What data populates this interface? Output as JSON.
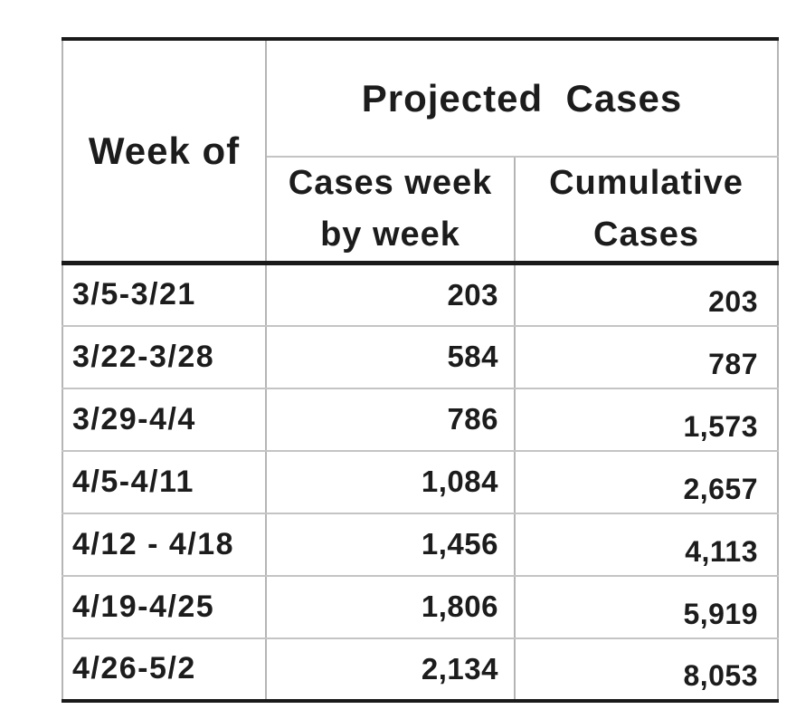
{
  "page": {
    "background": "#ffffff"
  },
  "table": {
    "header": {
      "week_of": "Week of",
      "projected_cases": "Projected  Cases",
      "sub_weekly": "Cases week\nby week",
      "sub_cumulative": "Cumulative\nCases"
    },
    "rows": [
      {
        "week": "3/5-3/21",
        "weekly": "203",
        "cumulative": "203"
      },
      {
        "week": "3/22-3/28",
        "weekly": "584",
        "cumulative": "787"
      },
      {
        "week": "3/29-4/4",
        "weekly": "786",
        "cumulative": "1,573"
      },
      {
        "week": "4/5-4/11",
        "weekly": "1,084",
        "cumulative": "2,657"
      },
      {
        "week": "4/12 - 4/18",
        "weekly": "1,456",
        "cumulative": "4,113"
      },
      {
        "week": "4/19-4/25",
        "weekly": "1,806",
        "cumulative": "5,919"
      },
      {
        "week": "4/26-5/2",
        "weekly": "2,134",
        "cumulative": "8,053"
      }
    ],
    "colors": {
      "text": "#1c1c1c",
      "heavy_rule": "#1a1a1a",
      "light_rule": "#c4c4c4",
      "vertical_rule": "#b5b5b5",
      "background": "#ffffff"
    }
  },
  "chart_data": {
    "type": "table",
    "title": "Projected Cases",
    "columns": [
      "Week of",
      "Cases week by week",
      "Cumulative Cases"
    ],
    "rows": [
      [
        "3/5-3/21",
        203,
        203
      ],
      [
        "3/22-3/28",
        584,
        787
      ],
      [
        "3/29-4/4",
        786,
        1573
      ],
      [
        "4/5-4/11",
        1084,
        2657
      ],
      [
        "4/12 - 4/18",
        1456,
        4113
      ],
      [
        "4/19-4/25",
        1806,
        5919
      ],
      [
        "4/26-5/2",
        2134,
        8053
      ]
    ]
  }
}
